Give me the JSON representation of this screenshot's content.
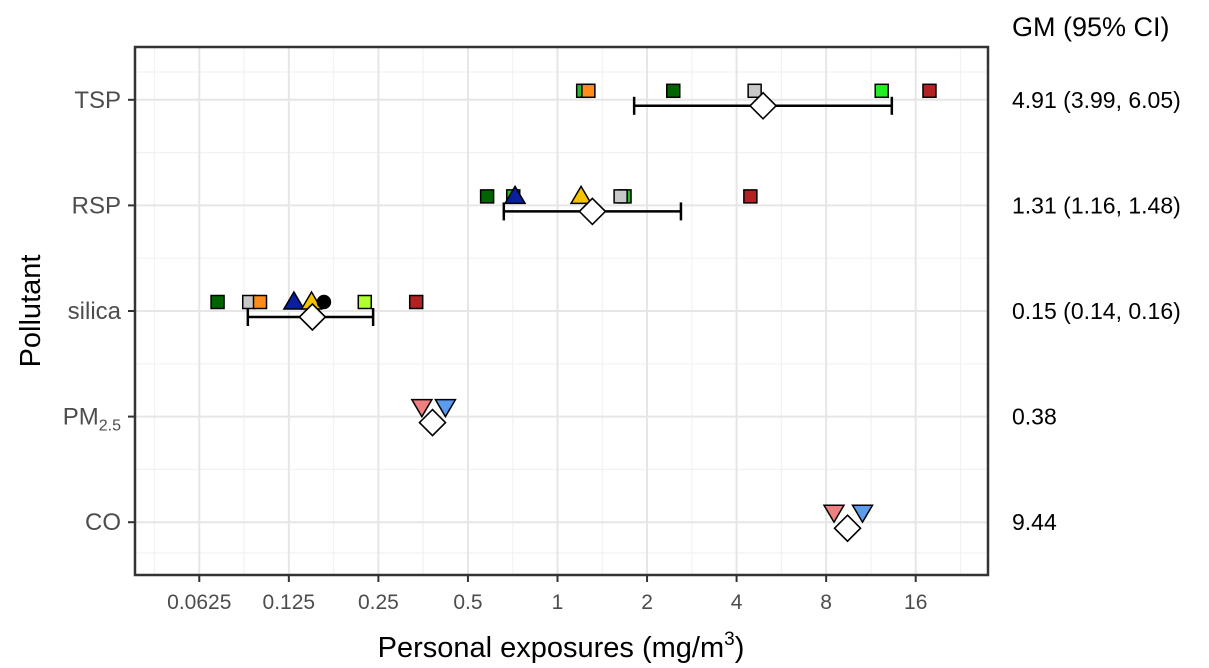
{
  "chart_data": {
    "type": "scatter",
    "xlabel": "Personal exposures (mg/m",
    "xlabel_sup": "3",
    "xlabel_end": ")",
    "ylabel": "Pollutant",
    "x_scale": "log2",
    "xlim": [
      0.038,
      28
    ],
    "x_ticks": [
      {
        "value": 0.0625,
        "label": "0.0625"
      },
      {
        "value": 0.125,
        "label": "0.125"
      },
      {
        "value": 0.25,
        "label": "0.25"
      },
      {
        "value": 0.5,
        "label": "0.5"
      },
      {
        "value": 1,
        "label": "1"
      },
      {
        "value": 2,
        "label": "2"
      },
      {
        "value": 4,
        "label": "4"
      },
      {
        "value": 8,
        "label": "8"
      },
      {
        "value": 16,
        "label": "16"
      }
    ],
    "grid": true,
    "legend": "none",
    "gm_header": "GM (95% CI)",
    "categories": [
      {
        "label": "TSP",
        "sub": "",
        "gm_text": "4.91 (3.99, 6.05)",
        "gm": 4.91,
        "ci": [
          1.81,
          13.3
        ]
      },
      {
        "label": "RSP",
        "sub": "",
        "gm_text": "1.31 (1.16, 1.48)",
        "gm": 1.31,
        "ci": [
          0.66,
          2.6
        ]
      },
      {
        "label": "silica",
        "sub": "",
        "gm_text": "0.15 (0.14, 0.16)",
        "gm": 0.15,
        "ci": [
          0.091,
          0.24
        ]
      },
      {
        "label": "PM",
        "sub": "2.5",
        "gm_text": "0.38",
        "gm": 0.38,
        "ci": null
      },
      {
        "label": "CO",
        "sub": "",
        "gm_text": "9.44",
        "gm": 9.44,
        "ci": null
      }
    ],
    "points": [
      {
        "category": "TSP",
        "x": 1.22,
        "shape": "square",
        "color": "#2db82d"
      },
      {
        "category": "TSP",
        "x": 1.27,
        "shape": "square",
        "color": "#ff8c1a"
      },
      {
        "category": "TSP",
        "x": 2.45,
        "shape": "square",
        "color": "#006400"
      },
      {
        "category": "TSP",
        "x": 4.6,
        "shape": "square",
        "color": "#c8c8c8"
      },
      {
        "category": "TSP",
        "x": 12.3,
        "shape": "square",
        "color": "#22ee22"
      },
      {
        "category": "TSP",
        "x": 17.8,
        "shape": "square",
        "color": "#b22222"
      },
      {
        "category": "RSP",
        "x": 0.58,
        "shape": "square",
        "color": "#006400"
      },
      {
        "category": "RSP",
        "x": 0.71,
        "shape": "square",
        "color": "#2db82d"
      },
      {
        "category": "RSP",
        "x": 0.72,
        "shape": "triangle-up",
        "color": "#0a1f9e"
      },
      {
        "category": "RSP",
        "x": 1.2,
        "shape": "triangle-up",
        "color": "#f5c400"
      },
      {
        "category": "RSP",
        "x": 1.68,
        "shape": "square",
        "color": "#2db82d"
      },
      {
        "category": "RSP",
        "x": 1.63,
        "shape": "square",
        "color": "#c8c8c8"
      },
      {
        "category": "RSP",
        "x": 4.45,
        "shape": "square",
        "color": "#b22222"
      },
      {
        "category": "silica",
        "x": 0.072,
        "shape": "square",
        "color": "#006400"
      },
      {
        "category": "silica",
        "x": 0.092,
        "shape": "square",
        "color": "#c8c8c8"
      },
      {
        "category": "silica",
        "x": 0.1,
        "shape": "square",
        "color": "#ff8c1a"
      },
      {
        "category": "silica",
        "x": 0.13,
        "shape": "triangle-up",
        "color": "#0a1f9e"
      },
      {
        "category": "silica",
        "x": 0.149,
        "shape": "triangle-up",
        "color": "#f5c400"
      },
      {
        "category": "silica",
        "x": 0.164,
        "shape": "circle",
        "color": "#000000"
      },
      {
        "category": "silica",
        "x": 0.225,
        "shape": "square",
        "color": "#adff2f"
      },
      {
        "category": "silica",
        "x": 0.335,
        "shape": "square",
        "color": "#b22222"
      },
      {
        "category": "PM2.5",
        "x": 0.35,
        "shape": "triangle-down",
        "color": "#f08080"
      },
      {
        "category": "PM2.5",
        "x": 0.42,
        "shape": "triangle-down",
        "color": "#5b9bf0"
      },
      {
        "category": "CO",
        "x": 8.5,
        "shape": "triangle-down",
        "color": "#f08080"
      },
      {
        "category": "CO",
        "x": 10.6,
        "shape": "triangle-down",
        "color": "#5b9bf0"
      }
    ]
  }
}
